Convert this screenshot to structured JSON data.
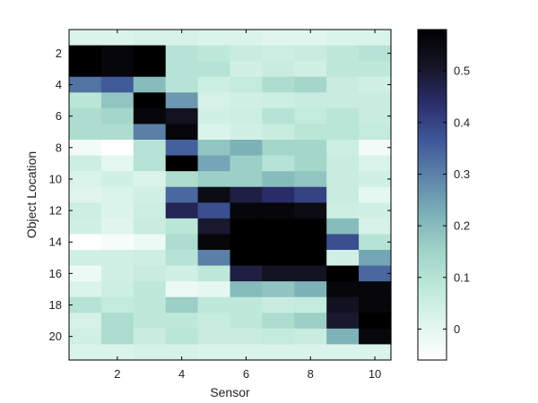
{
  "chart_data": {
    "type": "heatmap",
    "title": "",
    "xlabel": "Sensor",
    "ylabel": "Object Location",
    "x_range": [
      1,
      10
    ],
    "y_range": [
      1,
      21
    ],
    "x_ticks": [
      2,
      4,
      6,
      8,
      10
    ],
    "y_ticks": [
      2,
      4,
      6,
      8,
      10,
      12,
      14,
      16,
      18,
      20
    ],
    "colorbar": {
      "range": [
        -0.06,
        0.58
      ],
      "ticks": [
        0,
        0.1,
        0.2,
        0.3,
        0.4,
        0.5
      ],
      "tick_labels": [
        "0",
        "0.1",
        "0.2",
        "0.3",
        "0.4",
        "0.5"
      ],
      "colors": [
        "#ffffff",
        "#dff5ee",
        "#bde9d9",
        "#9fd2c7",
        "#7bb0b8",
        "#5d83a8",
        "#3e5699",
        "#2b2d6a",
        "#151526",
        "#000000"
      ]
    },
    "grid": false,
    "z": [
      [
        0.02,
        0.02,
        0.03,
        0.03,
        0.02,
        0.02,
        0.01,
        0.01,
        0.02,
        0.02
      ],
      [
        0.58,
        0.56,
        0.58,
        0.1,
        0.08,
        0.06,
        0.05,
        0.06,
        0.08,
        0.1
      ],
      [
        0.58,
        0.56,
        0.58,
        0.1,
        0.1,
        0.04,
        0.06,
        0.04,
        0.08,
        0.08
      ],
      [
        0.32,
        0.36,
        0.2,
        0.1,
        0.05,
        0.07,
        0.12,
        0.14,
        0.06,
        0.04
      ],
      [
        0.09,
        0.18,
        0.58,
        0.26,
        0.03,
        0.04,
        0.05,
        0.06,
        0.06,
        0.06
      ],
      [
        0.12,
        0.14,
        0.56,
        0.52,
        0.04,
        0.05,
        0.1,
        0.07,
        0.09,
        0.06
      ],
      [
        0.12,
        0.12,
        0.3,
        0.56,
        0.02,
        0.04,
        0.06,
        0.09,
        0.09,
        0.07
      ],
      [
        -0.03,
        -0.06,
        0.1,
        0.35,
        0.18,
        0.22,
        0.14,
        0.14,
        0.05,
        -0.03
      ],
      [
        0.05,
        0.0,
        0.1,
        0.58,
        0.24,
        0.16,
        0.1,
        0.14,
        0.06,
        0.02
      ],
      [
        0.02,
        0.04,
        0.02,
        0.12,
        0.16,
        0.16,
        0.2,
        0.18,
        0.06,
        0.04
      ],
      [
        0.01,
        0.02,
        0.04,
        0.34,
        0.54,
        0.48,
        0.44,
        0.4,
        0.06,
        0.0
      ],
      [
        0.05,
        0.02,
        0.05,
        0.46,
        0.38,
        0.56,
        0.56,
        0.54,
        0.05,
        0.04
      ],
      [
        0.04,
        0.01,
        0.06,
        0.09,
        0.5,
        0.58,
        0.58,
        0.58,
        0.2,
        0.03
      ],
      [
        -0.06,
        -0.04,
        -0.02,
        0.12,
        0.56,
        0.58,
        0.58,
        0.58,
        0.38,
        0.1
      ],
      [
        0.04,
        0.04,
        0.05,
        0.1,
        0.3,
        0.58,
        0.58,
        0.58,
        0.04,
        0.24
      ],
      [
        -0.02,
        0.04,
        0.06,
        0.04,
        0.08,
        0.48,
        0.52,
        0.52,
        0.58,
        0.34
      ],
      [
        0.02,
        0.05,
        0.08,
        -0.02,
        0.0,
        0.2,
        0.18,
        0.22,
        0.56,
        0.56
      ],
      [
        0.1,
        0.07,
        0.08,
        0.16,
        0.08,
        0.08,
        0.06,
        0.07,
        0.52,
        0.56
      ],
      [
        0.03,
        0.12,
        0.08,
        0.08,
        0.06,
        0.08,
        0.12,
        0.16,
        0.5,
        0.58
      ],
      [
        0.04,
        0.12,
        0.06,
        0.09,
        0.06,
        0.06,
        0.07,
        0.06,
        0.22,
        0.56
      ],
      [
        0.02,
        0.02,
        0.03,
        0.03,
        0.02,
        0.02,
        0.02,
        0.02,
        0.02,
        0.02
      ]
    ]
  }
}
